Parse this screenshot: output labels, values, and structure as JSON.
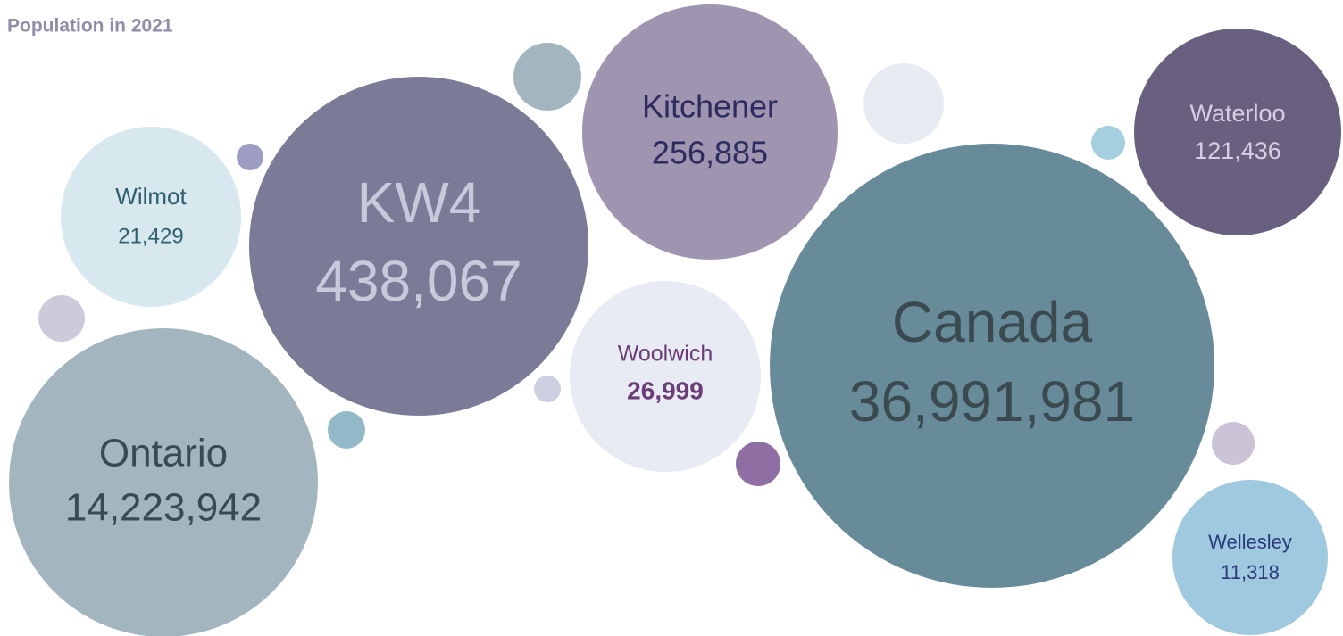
{
  "subtitle": "Population in 2021",
  "bubbles": [
    {
      "label": "Wilmot",
      "value": "21,429"
    },
    {
      "label": "KW4",
      "value": "438,067"
    },
    {
      "label": "Kitchener",
      "value": "256,885"
    },
    {
      "label": "Woolwich",
      "value": "26,999"
    },
    {
      "label": "Canada",
      "value": "36,991,981"
    },
    {
      "label": "Waterloo",
      "value": "121,436"
    },
    {
      "label": "Ontario",
      "value": "14,223,942"
    },
    {
      "label": "Wellesley",
      "value": "11,318"
    }
  ]
}
